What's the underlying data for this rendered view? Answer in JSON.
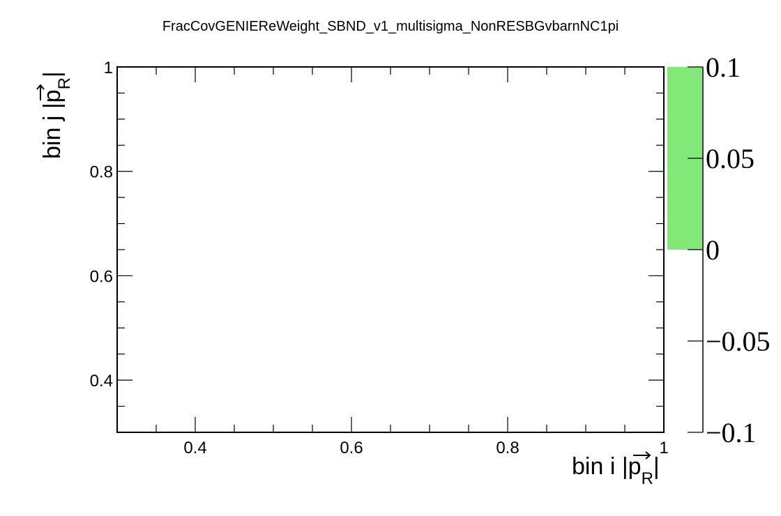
{
  "chart_data": {
    "type": "heatmap",
    "title": "FracCovGENIEReWeight_SBND_v1_multisigma_NonRESBGvbarnNC1pi",
    "xlabel": {
      "main": "bin i |",
      "vec": "p",
      "sub": "R",
      "close": "|"
    },
    "ylabel": {
      "main": "bin j |",
      "vec": "p",
      "sub": "R",
      "close": "|"
    },
    "xlim": [
      0.3,
      1.0
    ],
    "ylim": [
      0.3,
      1.0
    ],
    "x_ticks": [
      {
        "value": 0.4,
        "label": "0.4"
      },
      {
        "value": 0.6,
        "label": "0.6"
      },
      {
        "value": 0.8,
        "label": "0.8"
      },
      {
        "value": 1.0,
        "label": "1"
      }
    ],
    "y_ticks": [
      {
        "value": 0.4,
        "label": "0.4"
      },
      {
        "value": 0.6,
        "label": "0.6"
      },
      {
        "value": 0.8,
        "label": "0.8"
      },
      {
        "value": 1.0,
        "label": "1"
      }
    ],
    "x_minor_step": 0.05,
    "y_minor_step": 0.05,
    "cells": [],
    "colorbar": {
      "zlim": [
        -0.1,
        0.1
      ],
      "ticks": [
        {
          "value": 0.1,
          "label": "0.1"
        },
        {
          "value": 0.05,
          "label": "0.05"
        },
        {
          "value": 0,
          "label": "0"
        },
        {
          "value": -0.05,
          "label": "−0.05"
        },
        {
          "value": -0.1,
          "label": "−0.1"
        }
      ],
      "filled_range": [
        0,
        0.1
      ],
      "fill_color": "#82e878"
    },
    "grid": false,
    "legend": "none"
  }
}
